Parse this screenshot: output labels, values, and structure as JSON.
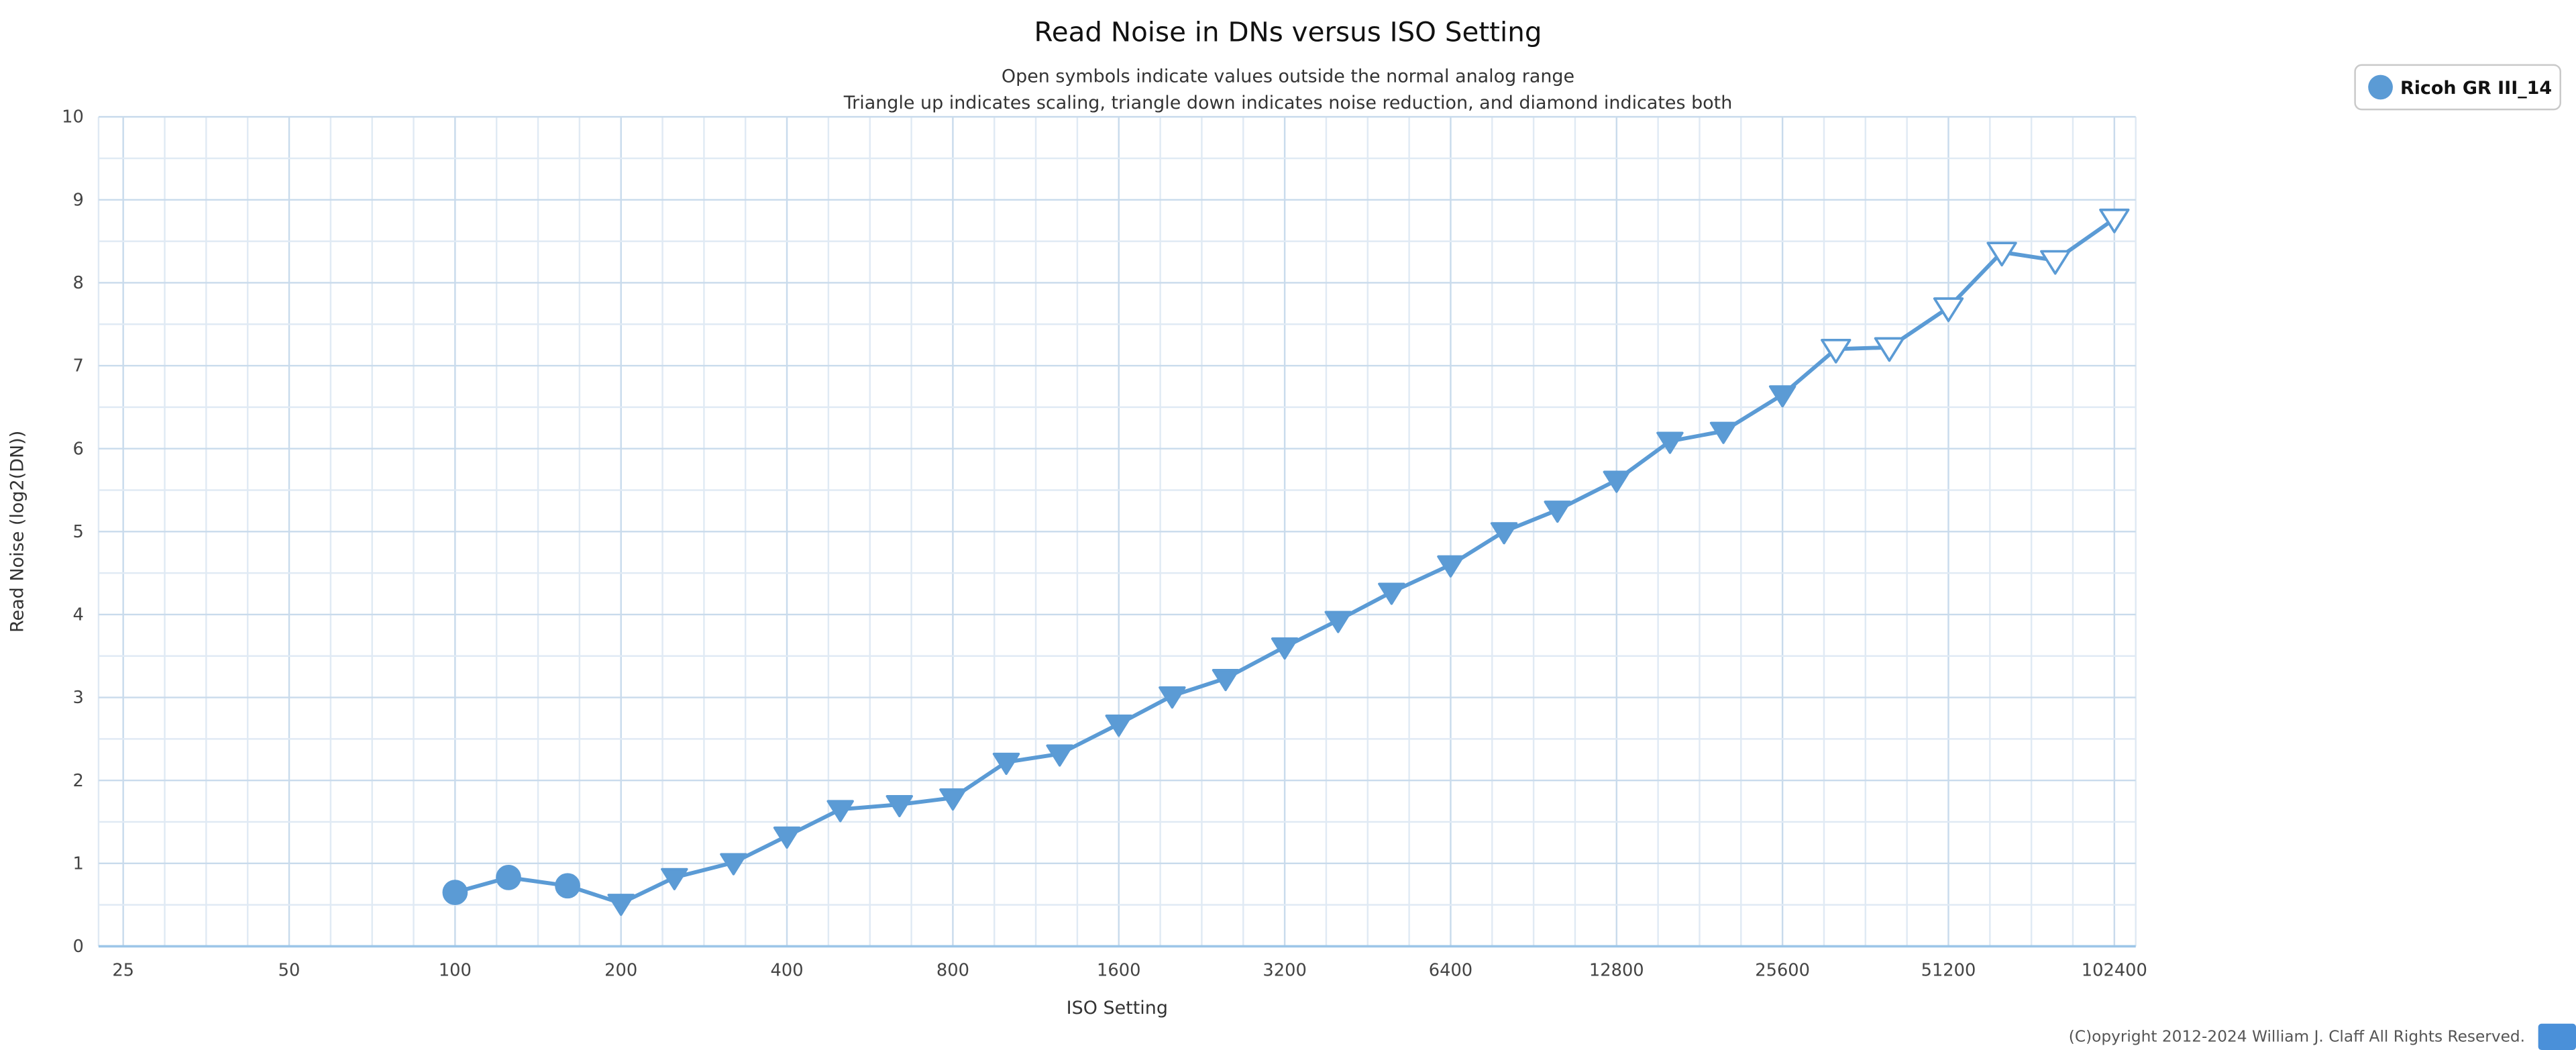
{
  "page": {
    "copyright": "(C)opyright 2012-2024 William J. Claff All Rights Reserved.",
    "accent_color": "#4a90d9",
    "background": "#ffffff"
  },
  "chart_data": {
    "type": "line",
    "title": "Read Noise in DNs versus ISO Setting",
    "subtitle_lines": [
      "Open symbols indicate values outside the normal analog range",
      "Triangle up indicates scaling, triangle down indicates noise reduction, and diamond indicates both"
    ],
    "xlabel": "ISO Setting",
    "ylabel": "Read Noise (log2(DN))",
    "x_scale": "log2",
    "xlim": [
      25,
      102400
    ],
    "ylim": [
      0,
      10
    ],
    "grid": true,
    "legend_position": "top-right",
    "x_ticks": [
      25,
      50,
      100,
      200,
      400,
      800,
      1600,
      3200,
      6400,
      12800,
      25600,
      51200,
      102400
    ],
    "y_ticks": [
      0,
      1,
      2,
      3,
      4,
      5,
      6,
      7,
      8,
      9,
      10
    ],
    "series": [
      {
        "name": "Ricoh GR III_14",
        "color": "#5b9bd5",
        "points": [
          {
            "iso": 100,
            "read_noise": 0.65,
            "marker": "circle",
            "open": false
          },
          {
            "iso": 125,
            "read_noise": 0.83,
            "marker": "circle",
            "open": false
          },
          {
            "iso": 160,
            "read_noise": 0.73,
            "marker": "circle",
            "open": false
          },
          {
            "iso": 200,
            "read_noise": 0.52,
            "marker": "triangle-down",
            "open": false
          },
          {
            "iso": 250,
            "read_noise": 0.83,
            "marker": "triangle-down",
            "open": false
          },
          {
            "iso": 320,
            "read_noise": 1.01,
            "marker": "triangle-down",
            "open": false
          },
          {
            "iso": 400,
            "read_noise": 1.33,
            "marker": "triangle-down",
            "open": false
          },
          {
            "iso": 500,
            "read_noise": 1.65,
            "marker": "triangle-down",
            "open": false
          },
          {
            "iso": 640,
            "read_noise": 1.71,
            "marker": "triangle-down",
            "open": false
          },
          {
            "iso": 800,
            "read_noise": 1.79,
            "marker": "triangle-down",
            "open": false
          },
          {
            "iso": 1000,
            "read_noise": 2.22,
            "marker": "triangle-down",
            "open": false
          },
          {
            "iso": 1250,
            "read_noise": 2.32,
            "marker": "triangle-down",
            "open": false
          },
          {
            "iso": 1600,
            "read_noise": 2.68,
            "marker": "triangle-down",
            "open": false
          },
          {
            "iso": 2000,
            "read_noise": 3.02,
            "marker": "triangle-down",
            "open": false
          },
          {
            "iso": 2500,
            "read_noise": 3.23,
            "marker": "triangle-down",
            "open": false
          },
          {
            "iso": 3200,
            "read_noise": 3.61,
            "marker": "triangle-down",
            "open": false
          },
          {
            "iso": 4000,
            "read_noise": 3.93,
            "marker": "triangle-down",
            "open": false
          },
          {
            "iso": 5000,
            "read_noise": 4.27,
            "marker": "triangle-down",
            "open": false
          },
          {
            "iso": 6400,
            "read_noise": 4.6,
            "marker": "triangle-down",
            "open": false
          },
          {
            "iso": 8000,
            "read_noise": 5.0,
            "marker": "triangle-down",
            "open": false
          },
          {
            "iso": 10000,
            "read_noise": 5.26,
            "marker": "triangle-down",
            "open": false
          },
          {
            "iso": 12800,
            "read_noise": 5.62,
            "marker": "triangle-down",
            "open": false
          },
          {
            "iso": 16000,
            "read_noise": 6.09,
            "marker": "triangle-down",
            "open": false
          },
          {
            "iso": 20000,
            "read_noise": 6.21,
            "marker": "triangle-down",
            "open": false
          },
          {
            "iso": 25600,
            "read_noise": 6.65,
            "marker": "triangle-down",
            "open": false
          },
          {
            "iso": 32000,
            "read_noise": 7.2,
            "marker": "triangle-down",
            "open": true
          },
          {
            "iso": 40000,
            "read_noise": 7.22,
            "marker": "triangle-down",
            "open": true
          },
          {
            "iso": 51200,
            "read_noise": 7.7,
            "marker": "triangle-down",
            "open": true
          },
          {
            "iso": 64000,
            "read_noise": 8.37,
            "marker": "triangle-down",
            "open": true
          },
          {
            "iso": 80000,
            "read_noise": 8.27,
            "marker": "triangle-down",
            "open": true
          },
          {
            "iso": 102400,
            "read_noise": 8.77,
            "marker": "triangle-down",
            "open": true
          }
        ]
      }
    ]
  }
}
